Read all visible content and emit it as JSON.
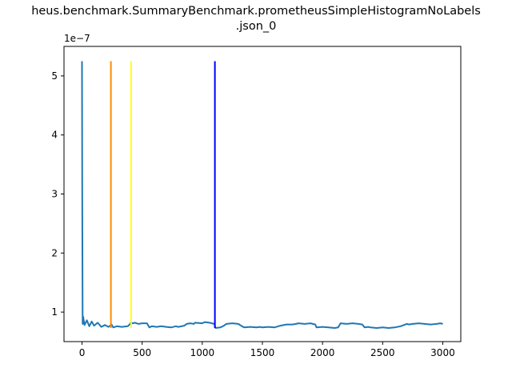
{
  "chart_data": {
    "type": "line",
    "title_line1": "heus.benchmark.SummaryBenchmark.prometheusSimpleHistogramNoLabels",
    "title_line2": ".json_0",
    "xlabel": "",
    "ylabel": "",
    "y_exponent_label": "1e−7",
    "xlim": [
      -150,
      3150
    ],
    "ylim": [
      5e-08,
      5.5e-07
    ],
    "x_ticks": [
      0,
      500,
      1000,
      1500,
      2000,
      2500,
      3000
    ],
    "x_tick_labels": [
      "0",
      "500",
      "1000",
      "1500",
      "2000",
      "2500",
      "3000"
    ],
    "y_ticks": [
      1e-07,
      2e-07,
      3e-07,
      4e-07,
      5e-07
    ],
    "y_tick_labels": [
      "1",
      "2",
      "3",
      "4",
      "5"
    ],
    "grid": false,
    "series": [
      {
        "color": "#1f77b4",
        "x": [
          0,
          2,
          5,
          10,
          20,
          40,
          60,
          80,
          100,
          130,
          160,
          190,
          220,
          245,
          260,
          290,
          330,
          380,
          400,
          405,
          420,
          440,
          470,
          500,
          540,
          560,
          580,
          620,
          660,
          700,
          740,
          780,
          800,
          850,
          870,
          900,
          930,
          940,
          1000,
          1020,
          1060,
          1100,
          1110,
          1150,
          1180,
          1200,
          1250,
          1300,
          1330,
          1350,
          1400,
          1450,
          1480,
          1500,
          1550,
          1600,
          1650,
          1700,
          1750,
          1780,
          1800,
          1850,
          1900,
          1940,
          1950,
          2000,
          2050,
          2100,
          2130,
          2150,
          2200,
          2250,
          2300,
          2330,
          2350,
          2380,
          2400,
          2450,
          2500,
          2550,
          2600,
          2650,
          2700,
          2720,
          2750,
          2800,
          2850,
          2900,
          2950,
          2980,
          3000
        ],
        "y": [
          5.25e-07,
          3e-07,
          8e-08,
          9.2e-08,
          7.8e-08,
          8.6e-08,
          7.6e-08,
          8.4e-08,
          7.7e-08,
          8.2e-08,
          7.5e-08,
          7.8e-08,
          7.5e-08,
          7.9e-08,
          7.4e-08,
          7.6e-08,
          7.5e-08,
          7.6e-08,
          8e-08,
          8.2e-08,
          8.1e-08,
          8.2e-08,
          8e-08,
          8.1e-08,
          8.1e-08,
          7.4e-08,
          7.6e-08,
          7.5e-08,
          7.6e-08,
          7.5e-08,
          7.4e-08,
          7.6e-08,
          7.5e-08,
          7.7e-08,
          8e-08,
          8.1e-08,
          8e-08,
          8.2e-08,
          8.1e-08,
          8.3e-08,
          8.2e-08,
          8e-08,
          7.3e-08,
          7.4e-08,
          7.7e-08,
          8e-08,
          8.1e-08,
          8e-08,
          7.6e-08,
          7.4e-08,
          7.5e-08,
          7.4e-08,
          7.5e-08,
          7.4e-08,
          7.5e-08,
          7.4e-08,
          7.7e-08,
          7.9e-08,
          7.9e-08,
          8e-08,
          8.1e-08,
          8e-08,
          8.1e-08,
          7.9e-08,
          7.4e-08,
          7.5e-08,
          7.4e-08,
          7.3e-08,
          7.4e-08,
          8.1e-08,
          8e-08,
          8.1e-08,
          8e-08,
          7.9e-08,
          7.4e-08,
          7.5e-08,
          7.4e-08,
          7.3e-08,
          7.4e-08,
          7.3e-08,
          7.4e-08,
          7.6e-08,
          8e-08,
          7.9e-08,
          8e-08,
          8.1e-08,
          8e-08,
          7.9e-08,
          8e-08,
          8.1e-08,
          8e-08
        ]
      }
    ],
    "vertical_lines": [
      {
        "x": 240,
        "color": "#ff8c00",
        "y_min": 7.3e-08,
        "y_max": 5.25e-07
      },
      {
        "x": 408,
        "color": "#ffff1a",
        "y_min": 7.3e-08,
        "y_max": 5.25e-07
      },
      {
        "x": 1105,
        "color": "#0000ff",
        "y_min": 7.3e-08,
        "y_max": 5.25e-07
      }
    ]
  }
}
